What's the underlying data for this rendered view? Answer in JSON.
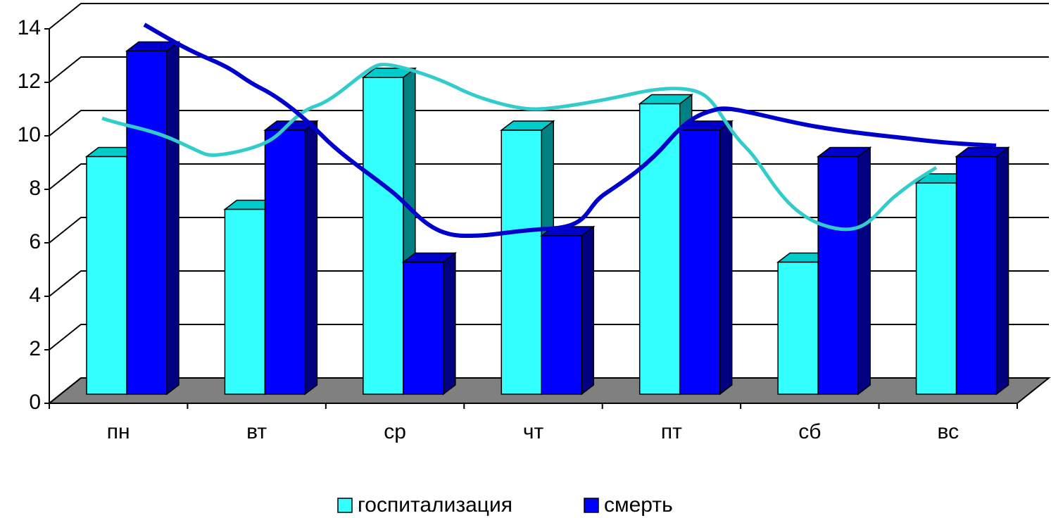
{
  "chart_data": {
    "type": "bar3d",
    "categories": [
      "пн",
      "вт",
      "ср",
      "чт",
      "пт",
      "сб",
      "вс"
    ],
    "series": [
      {
        "name": "госпитализация",
        "color": "#33ffff",
        "values": [
          9,
          7,
          12,
          10,
          11,
          5,
          8
        ]
      },
      {
        "name": "смерть",
        "color": "#0000ff",
        "values": [
          13,
          10,
          5,
          6,
          10,
          9,
          9
        ]
      }
    ],
    "ylim": [
      0,
      14
    ],
    "yticks": [
      0,
      2,
      4,
      6,
      8,
      10,
      12,
      14
    ],
    "grid": true,
    "legend": "bottom"
  }
}
